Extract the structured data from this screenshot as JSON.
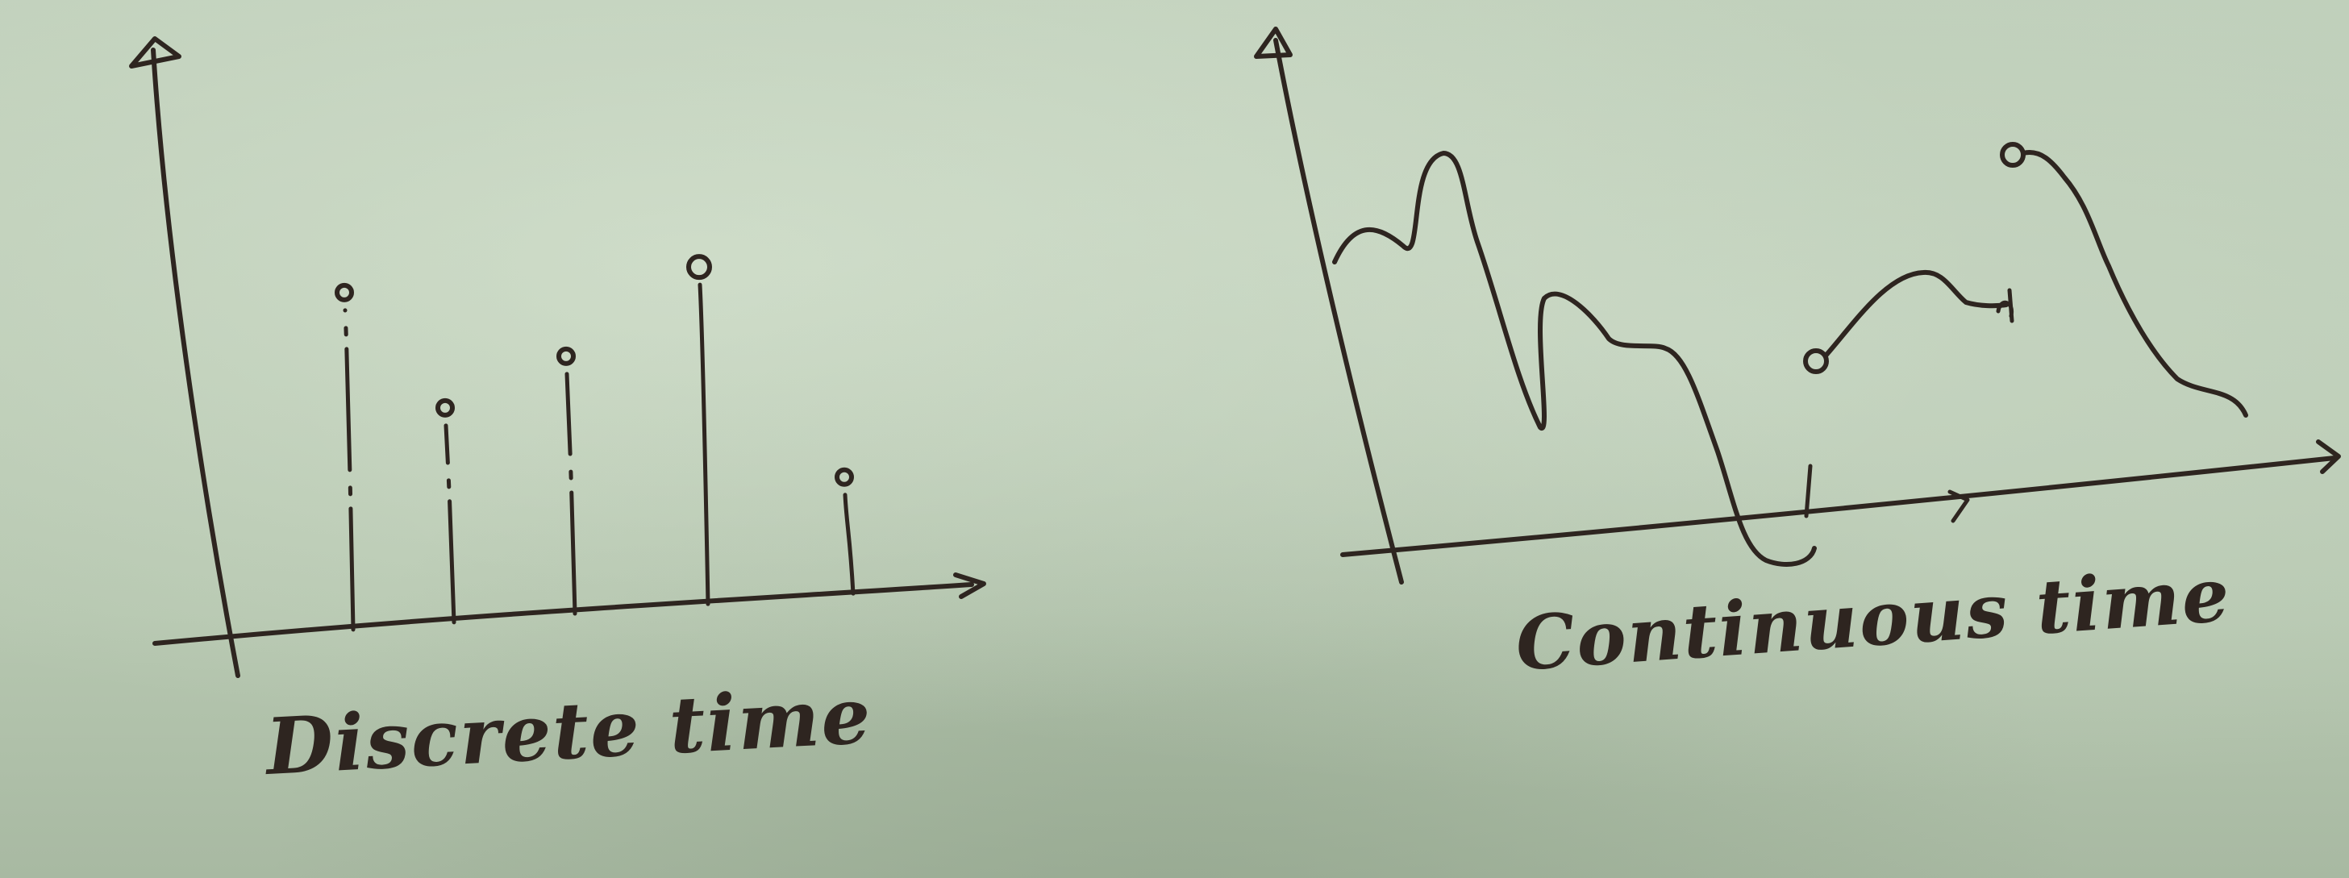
{
  "diagrams": [
    {
      "caption": "Discrete time",
      "samples": [
        0.55,
        0.35,
        0.42,
        0.55,
        0.19
      ]
    },
    {
      "caption": "Continuous time"
    }
  ],
  "colors": {
    "paper": "#b9c9b3",
    "ink": "#2e2520"
  }
}
